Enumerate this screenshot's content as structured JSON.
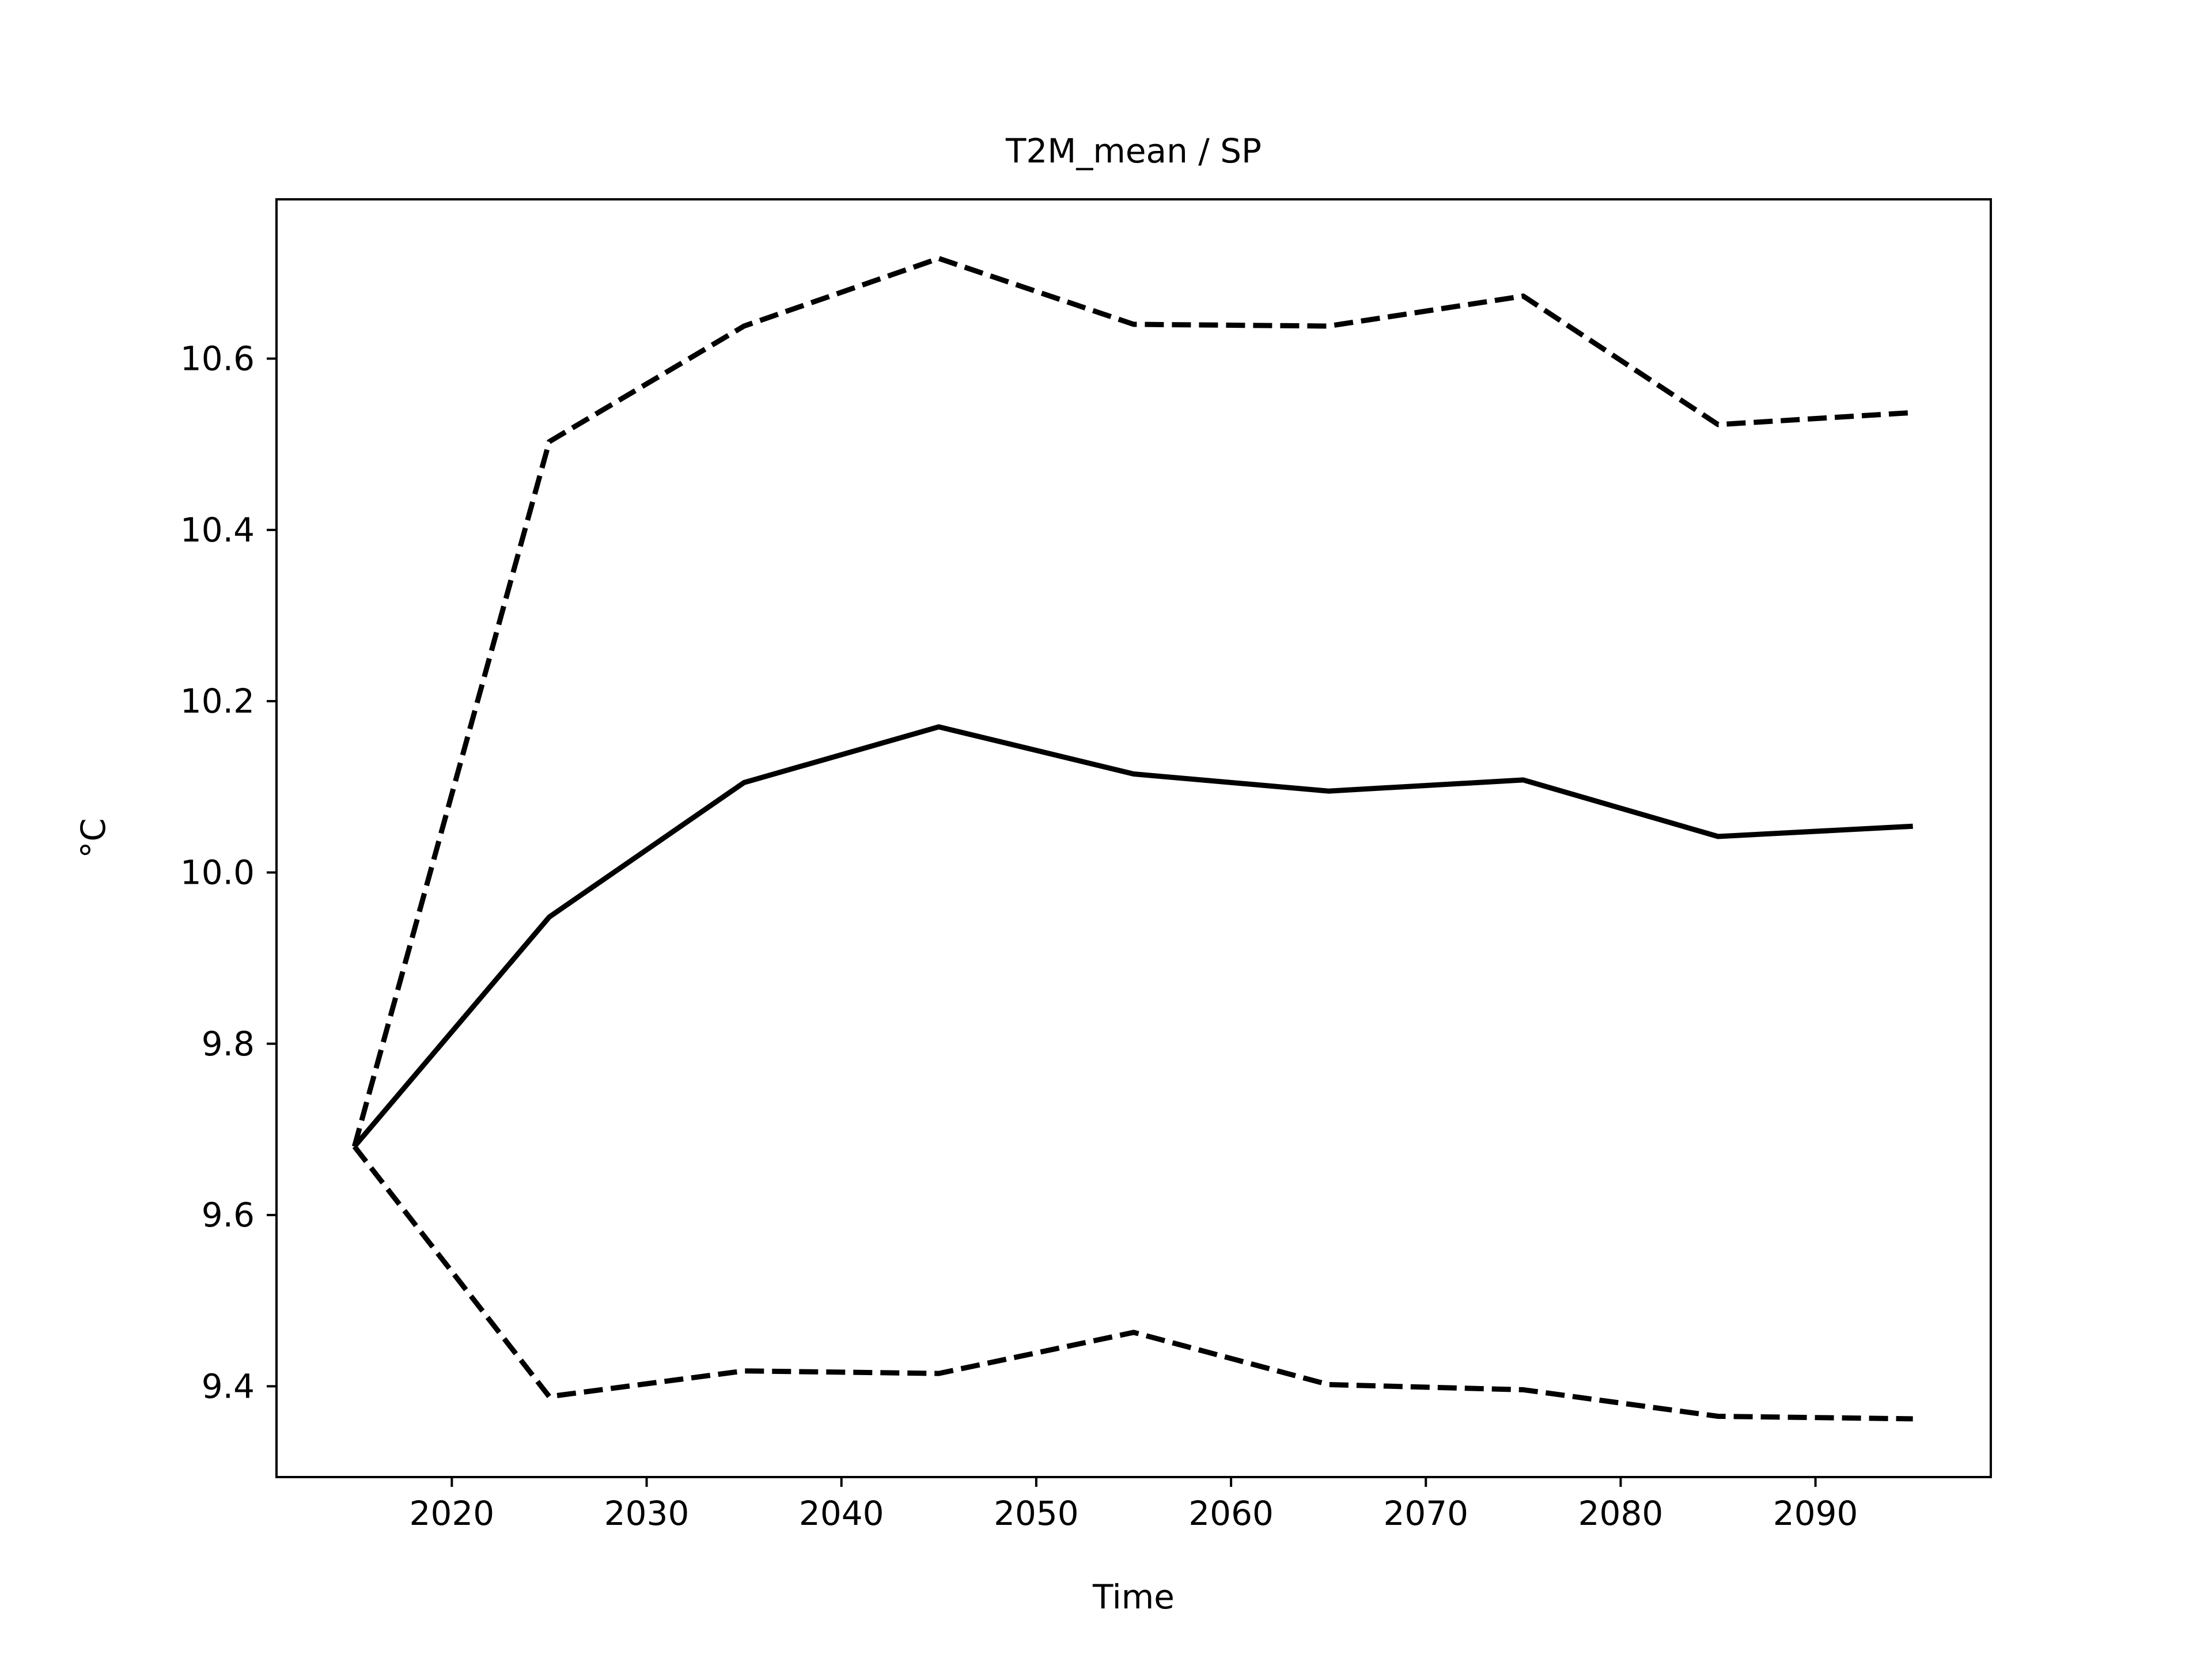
{
  "chart_data": {
    "type": "line",
    "title": "T2M_mean / SP",
    "xlabel": "Time",
    "ylabel": "°C",
    "x": [
      2015,
      2025,
      2035,
      2045,
      2055,
      2065,
      2075,
      2085,
      2095
    ],
    "series": [
      {
        "style": "solid",
        "color": "#000000",
        "values": [
          9.68,
          9.948,
          10.105,
          10.17,
          10.115,
          10.095,
          10.108,
          10.042,
          10.054
        ]
      },
      {
        "style": "dashed",
        "color": "#000000",
        "values": [
          9.68,
          10.503,
          10.638,
          10.717,
          10.64,
          10.638,
          10.673,
          10.523,
          10.537
        ]
      },
      {
        "style": "dashed",
        "color": "#000000",
        "values": [
          9.68,
          9.388,
          9.418,
          9.415,
          9.463,
          9.402,
          9.396,
          9.365,
          9.362
        ]
      }
    ],
    "xlim": [
      2011,
      2099
    ],
    "ylim": [
      9.294,
      10.786
    ],
    "xticks": [
      2020,
      2030,
      2040,
      2050,
      2060,
      2070,
      2080,
      2090
    ],
    "yticks": [
      9.4,
      9.6,
      9.8,
      10.0,
      10.2,
      10.4,
      10.6
    ],
    "xtick_labels": [
      "2020",
      "2030",
      "2040",
      "2050",
      "2060",
      "2070",
      "2080",
      "2090"
    ],
    "ytick_labels": [
      "9.4",
      "9.6",
      "9.8",
      "10.0",
      "10.2",
      "10.4",
      "10.6"
    ],
    "grid": false,
    "legend": "none"
  }
}
